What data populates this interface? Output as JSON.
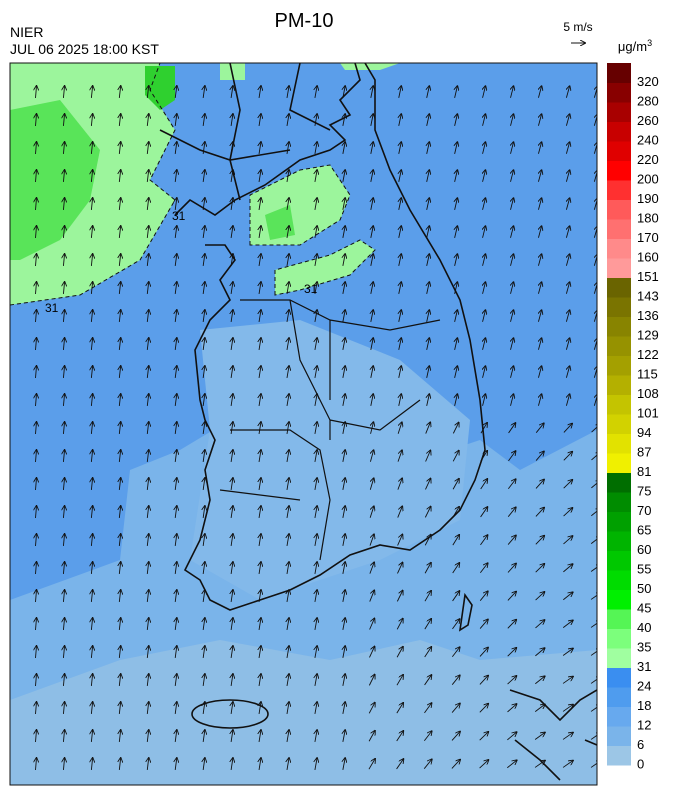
{
  "header": {
    "title": "PM-10",
    "org": "NIER",
    "time": "JUL 06 2025 18:00 KST"
  },
  "wind_legend": {
    "label": "5 m/s"
  },
  "contour_labels": [
    "31",
    "31",
    "31"
  ],
  "colorbar": {
    "unit": "μg/m3",
    "labels": [
      "0",
      "6",
      "12",
      "18",
      "24",
      "31",
      "35",
      "40",
      "45",
      "50",
      "55",
      "60",
      "65",
      "70",
      "75",
      "81",
      "87",
      "94",
      "101",
      "108",
      "115",
      "122",
      "129",
      "136",
      "143",
      "151",
      "160",
      "170",
      "180",
      "190",
      "200",
      "220",
      "240",
      "260",
      "280",
      "320"
    ],
    "colors": [
      "#9cc6e6",
      "#7ab4ea",
      "#67a9ee",
      "#4f9cee",
      "#3a8ef0",
      "#a0ffa0",
      "#7cff7c",
      "#55f555",
      "#00f000",
      "#00dc00",
      "#00c800",
      "#00b400",
      "#00a000",
      "#008c00",
      "#006e00",
      "#f0f000",
      "#e2e200",
      "#d2d200",
      "#c4c400",
      "#b4b000",
      "#a4a000",
      "#969200",
      "#888400",
      "#7a7400",
      "#6a6400",
      "#ff9a9a",
      "#ff8a8a",
      "#ff7070",
      "#ff5a5a",
      "#ff3030",
      "#ff0000",
      "#e00000",
      "#c80000",
      "#a80000",
      "#880000",
      "#660000"
    ]
  }
}
